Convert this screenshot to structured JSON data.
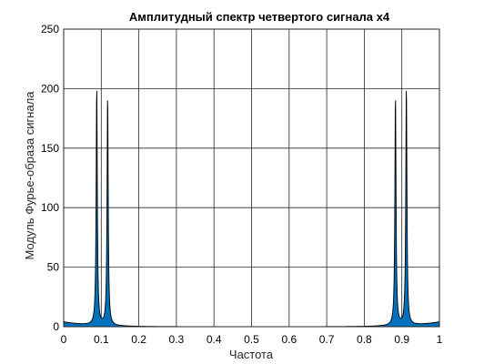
{
  "chart_data": {
    "type": "area",
    "title": "Амплитудный спектр четвертого сигнала x4",
    "xlabel": "Частота",
    "ylabel": "Модуль Фурье-образа сигнала",
    "xlim": [
      0,
      1
    ],
    "ylim": [
      0,
      250
    ],
    "xticks": [
      "0",
      "0.1",
      "0.2",
      "0.3",
      "0.4",
      "0.5",
      "0.6",
      "0.7",
      "0.8",
      "0.9",
      "1"
    ],
    "yticks": [
      "0",
      "50",
      "100",
      "150",
      "200",
      "250"
    ],
    "grid": true,
    "fill_color": "#0072BD",
    "line_color": "#000000",
    "series": [
      {
        "peaks": [
          {
            "x": 0.088,
            "y": 203
          },
          {
            "x": 0.117,
            "y": 195
          },
          {
            "x": 0.883,
            "y": 195
          },
          {
            "x": 0.912,
            "y": 203
          }
        ],
        "baseline": 4
      }
    ]
  }
}
